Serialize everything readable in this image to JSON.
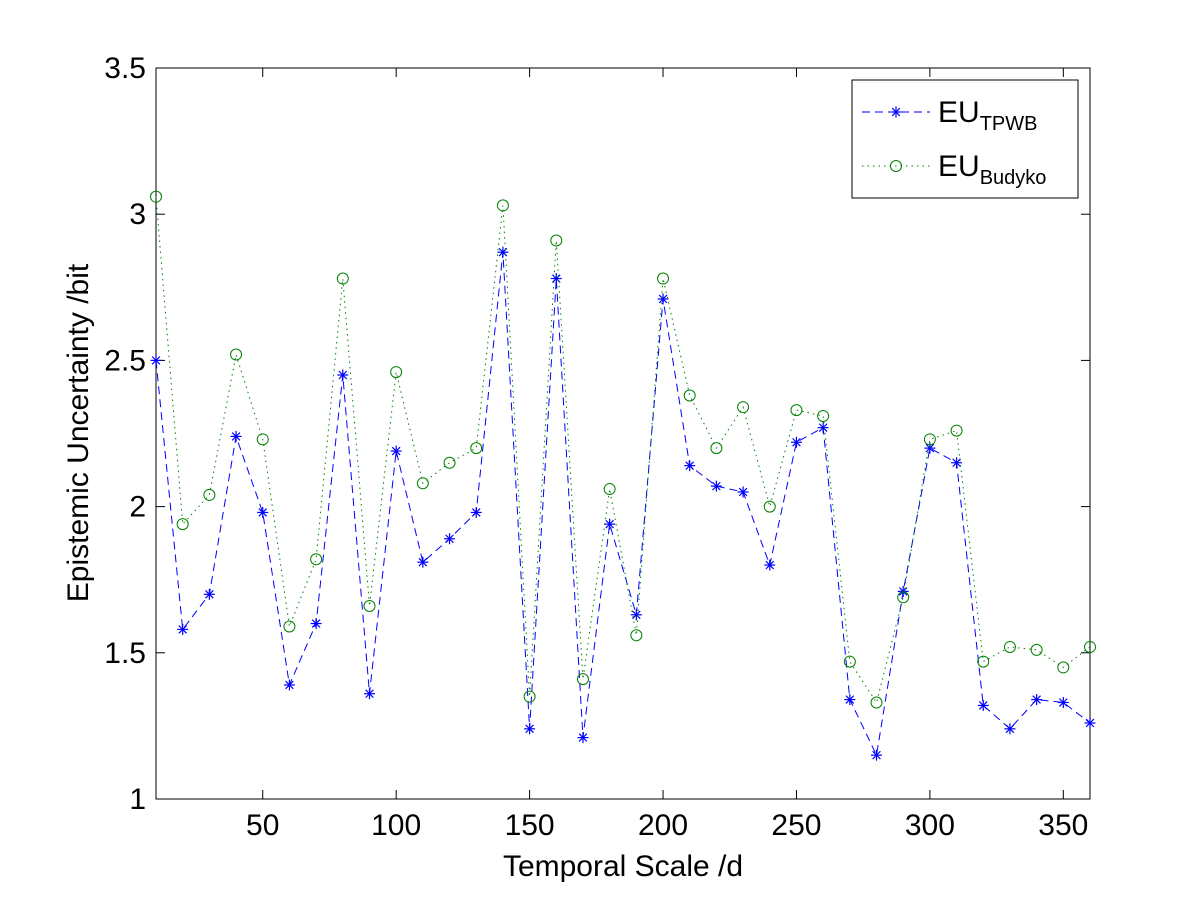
{
  "chart_data": {
    "type": "line",
    "title": "",
    "xlabel": "Temporal Scale /d",
    "ylabel": "Epistemic Uncertainty /bit",
    "xlim": [
      10,
      360
    ],
    "ylim": [
      1,
      3.5
    ],
    "xticks": [
      50,
      100,
      150,
      200,
      250,
      300,
      350
    ],
    "xtick_labels": [
      "50",
      "100",
      "150",
      "200",
      "250",
      "300",
      "350"
    ],
    "yticks": [
      1,
      1.5,
      2,
      2.5,
      3,
      3.5
    ],
    "ytick_labels": [
      "1",
      "1.5",
      "2",
      "2.5",
      "3",
      "3.5"
    ],
    "grid": false,
    "legend_position": "top-right",
    "x": [
      10,
      20,
      30,
      40,
      50,
      60,
      70,
      80,
      90,
      100,
      110,
      120,
      130,
      140,
      150,
      160,
      170,
      180,
      190,
      200,
      210,
      220,
      230,
      240,
      250,
      260,
      270,
      280,
      290,
      300,
      310,
      320,
      330,
      340,
      350,
      360
    ],
    "series": [
      {
        "name_main": "EU",
        "name_sub": "TPWB",
        "color": "#0000ff",
        "line_style": "dashed",
        "marker": "asterisk",
        "values": [
          2.5,
          1.58,
          1.7,
          2.24,
          1.98,
          1.39,
          1.6,
          2.45,
          1.36,
          2.19,
          1.81,
          1.89,
          1.98,
          2.87,
          1.24,
          2.78,
          1.21,
          1.94,
          1.63,
          2.71,
          2.14,
          2.07,
          2.05,
          1.8,
          2.22,
          2.27,
          1.34,
          1.15,
          1.71,
          2.2,
          2.15,
          1.32,
          1.24,
          1.34,
          1.33,
          1.26
        ]
      },
      {
        "name_main": "EU",
        "name_sub": "Budyko",
        "color": "#008000",
        "line_style": "dotted",
        "marker": "circle",
        "values": [
          3.06,
          1.94,
          2.04,
          2.52,
          2.23,
          1.59,
          1.82,
          2.78,
          1.66,
          2.46,
          2.08,
          2.15,
          2.2,
          3.03,
          1.35,
          2.91,
          1.41,
          2.06,
          1.56,
          2.78,
          2.38,
          2.2,
          2.34,
          2.0,
          2.33,
          2.31,
          1.47,
          1.33,
          1.69,
          2.23,
          2.26,
          1.47,
          1.52,
          1.51,
          1.45,
          1.52
        ]
      }
    ]
  }
}
